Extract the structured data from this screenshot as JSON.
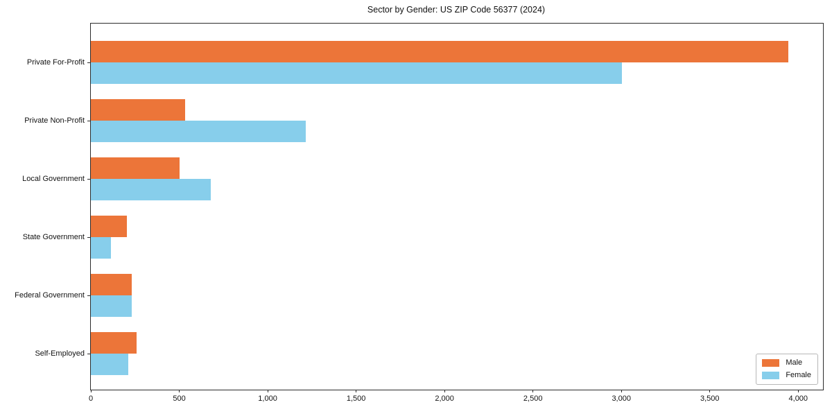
{
  "title": "Sector by Gender: US ZIP Code 56377 (2024)",
  "chart_data": {
    "type": "bar",
    "orientation": "horizontal",
    "title": "Sector by Gender: US ZIP Code 56377 (2024)",
    "xlabel": "",
    "ylabel": "",
    "categories": [
      "Private For-Profit",
      "Private Non-Profit",
      "Local Government",
      "State Government",
      "Federal Government",
      "Self-Employed"
    ],
    "series": [
      {
        "name": "Male",
        "color": "#ec7539",
        "values": [
          3945,
          535,
          500,
          205,
          230,
          260
        ]
      },
      {
        "name": "Female",
        "color": "#87ceeb",
        "values": [
          3005,
          1215,
          680,
          115,
          230,
          210
        ]
      }
    ],
    "xlim": [
      0,
      4140
    ],
    "xticks": [
      0,
      500,
      1000,
      1500,
      2000,
      2500,
      3000,
      3500,
      4000
    ],
    "xtick_labels": [
      "0",
      "500",
      "1,000",
      "1,500",
      "2,000",
      "2,500",
      "3,000",
      "3,500",
      "4,000"
    ],
    "grid": false,
    "legend": {
      "position": "lower right",
      "entries": [
        "Male",
        "Female"
      ]
    }
  }
}
